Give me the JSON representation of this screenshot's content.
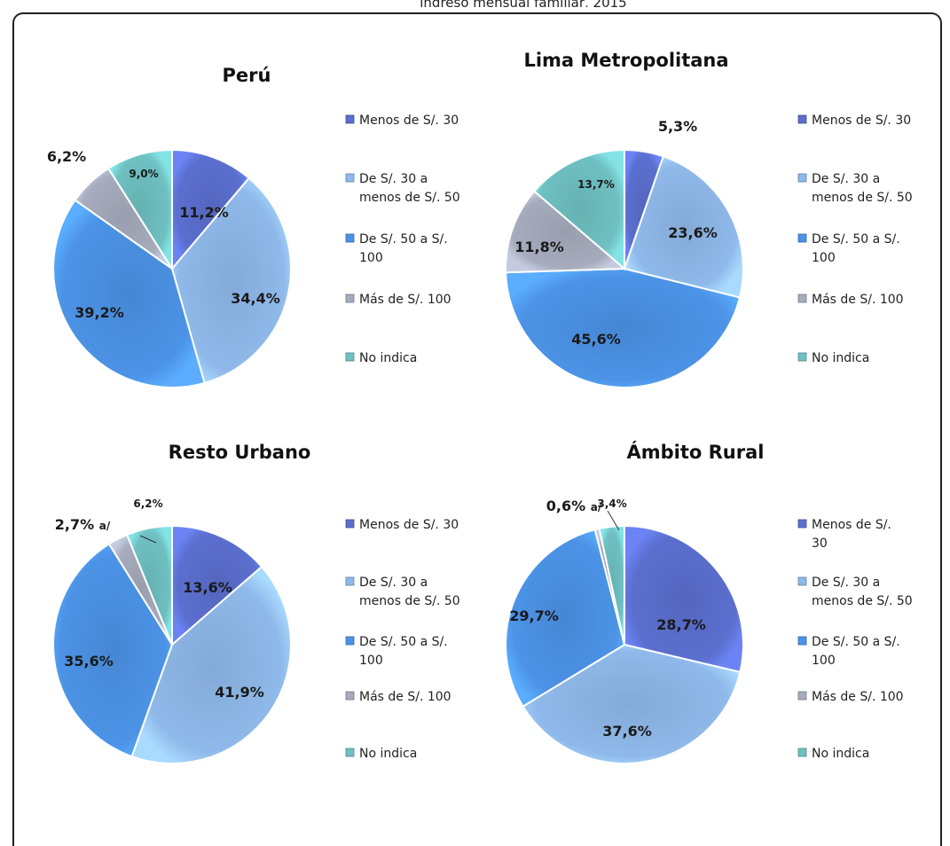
{
  "header_fragment": "ingreso mensual familiar, 2015",
  "colors": {
    "Menos de S/. 30": "#5b6fcf",
    "De S/. 30 a menos de S/. 50": "#8fb9ea",
    "De S/. 50 a S/. 100": "#4c93e6",
    "Más de S/. 100": "#a6acbd",
    "No indica": "#6fc0c2"
  },
  "chart_data": [
    {
      "type": "pie",
      "title": "Perú",
      "labels": [
        "Menos de S/. 30",
        "De S/. 30 a menos de S/. 50",
        "De S/. 50 a S/. 100",
        "Más de S/. 100",
        "No indica"
      ],
      "values": [
        11.2,
        34.4,
        39.2,
        6.2,
        9.0
      ],
      "value_labels": [
        "11,2%",
        "34,4%",
        "39,2%",
        "6,2%",
        "9,0%"
      ],
      "legend": [
        "Menos de S/. 30",
        "De S/. 30 a\nmenos de S/. 50",
        "De S/. 50 a S/.\n100",
        "Más de S/. 100",
        "No indica"
      ],
      "legend_position": "right"
    },
    {
      "type": "pie",
      "title": "Lima Metropolitana",
      "labels": [
        "Menos de S/. 30",
        "De S/. 30 a menos de S/. 50",
        "De S/. 50 a S/. 100",
        "Más de S/. 100",
        "No indica"
      ],
      "values": [
        5.3,
        23.6,
        45.6,
        11.8,
        13.7
      ],
      "value_labels": [
        "5,3%",
        "23,6%",
        "45,6%",
        "11,8%",
        "13,7%"
      ],
      "legend": [
        "Menos de S/. 30",
        "De S/. 30 a\nmenos de S/. 50",
        "De S/. 50 a S/.\n100",
        "Más de S/. 100",
        "No indica"
      ],
      "legend_position": "right"
    },
    {
      "type": "pie",
      "title": "Resto Urbano",
      "labels": [
        "Menos de S/. 30",
        "De S/. 30 a menos de S/. 50",
        "De S/. 50 a S/. 100",
        "Más de S/. 100",
        "No indica"
      ],
      "values": [
        13.6,
        41.9,
        35.6,
        2.7,
        6.2
      ],
      "value_labels": [
        "13,6%",
        "41,9%",
        "35,6%",
        "2,7% a/",
        "6,2%"
      ],
      "legend": [
        "Menos de S/. 30",
        "De S/. 30 a\nmenos de S/. 50",
        "De S/. 50 a S/.\n100",
        "Más de S/. 100",
        "No indica"
      ],
      "legend_position": "right"
    },
    {
      "type": "pie",
      "title": "Ámbito Rural",
      "labels": [
        "Menos de S/. 30",
        "De S/. 30 a menos de S/. 50",
        "De S/. 50 a S/. 100",
        "Más de S/. 100",
        "No indica"
      ],
      "values": [
        28.7,
        37.6,
        29.7,
        0.6,
        3.4
      ],
      "value_labels": [
        "28,7%",
        "37,6%",
        "29,7%",
        "0,6% a/",
        "3,4%"
      ],
      "legend": [
        "Menos de S/.\n30",
        "De S/. 30 a\nmenos de S/. 50",
        "De S/. 50 a S/.\n100",
        "Más de S/. 100",
        "No indica"
      ],
      "legend_position": "right"
    }
  ]
}
